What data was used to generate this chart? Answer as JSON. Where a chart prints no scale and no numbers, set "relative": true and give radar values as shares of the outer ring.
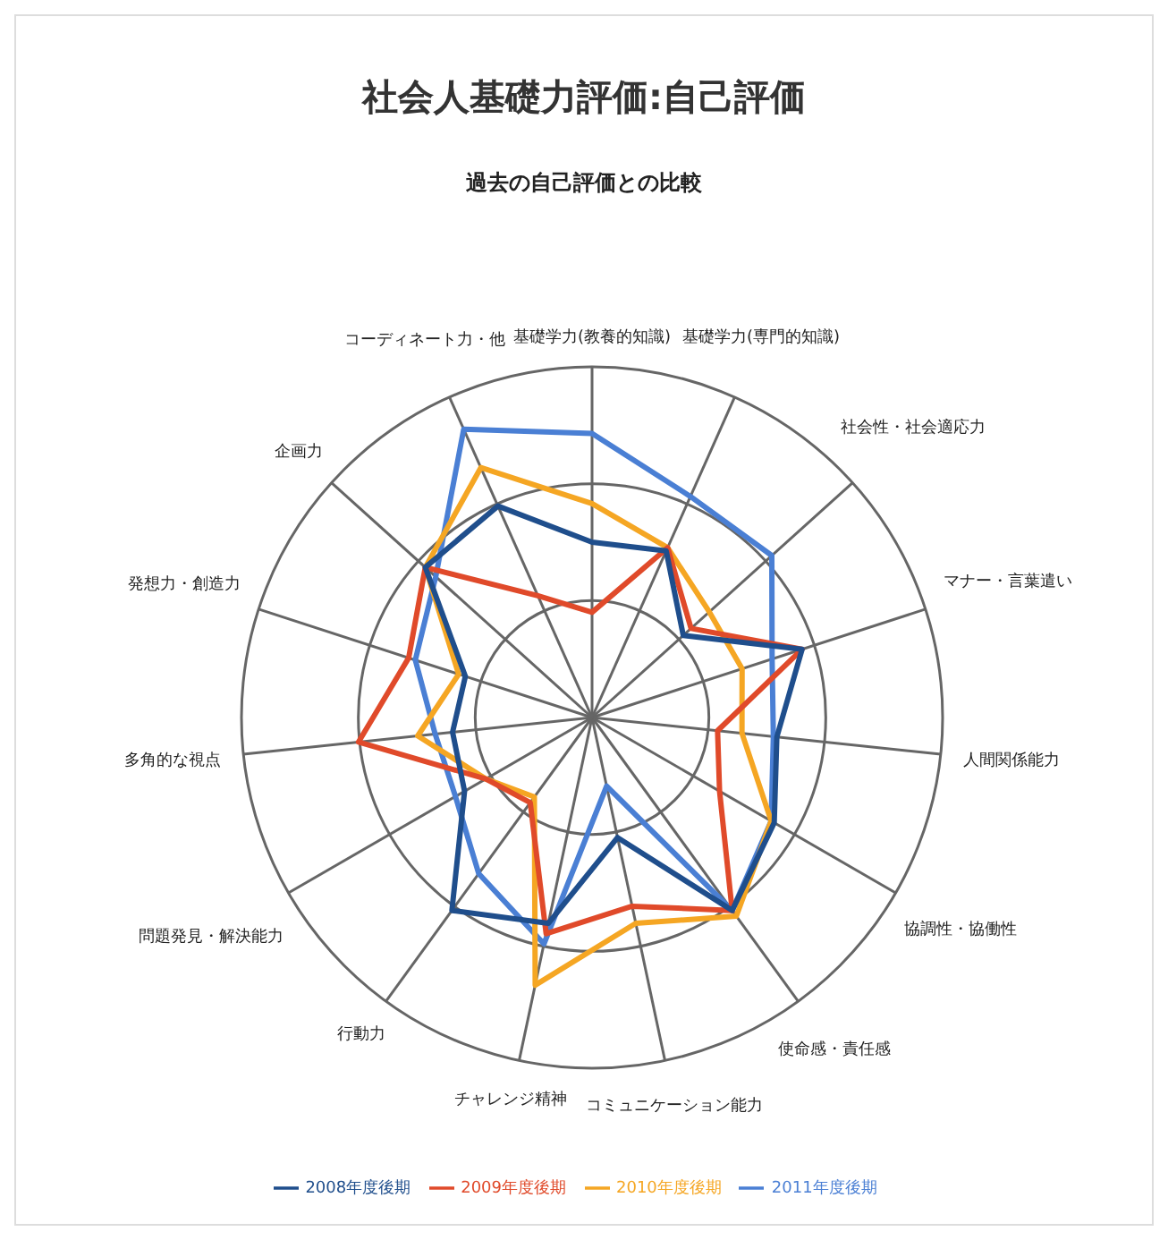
{
  "chart_data": {
    "type": "radar",
    "title": "社会人基礎力評価:自己評価",
    "subtitle": "過去の自己評価との比較",
    "relative": true,
    "legend": "bottom",
    "grid": true,
    "categories": [
      "基礎学力(教養的知識)",
      "基礎学力(専門的知識)",
      "社会性・社会適応力",
      "マナー・言葉遣い",
      "人間関係能力",
      "協調性・協働性",
      "使命感・責任感",
      "コミュニケーション能力",
      "チャレンジ精神",
      "行動力",
      "問題発見・解決能力",
      "多角的な視点",
      "発想力・創造力",
      "企画力",
      "コーディネート力・他"
    ],
    "series": [
      {
        "name": "2011年度後期",
        "color": "#4a7fd4",
        "values": [
          0.81,
          0.69,
          0.69,
          0.54,
          0.52,
          0.59,
          0.68,
          0.2,
          0.66,
          0.55,
          0.45,
          0.45,
          0.53,
          0.6,
          0.9
        ]
      },
      {
        "name": "2010年度後期",
        "color": "#f5a623",
        "values": [
          0.61,
          0.53,
          0.45,
          0.45,
          0.43,
          0.59,
          0.7,
          0.6,
          0.78,
          0.28,
          0.35,
          0.5,
          0.4,
          0.64,
          0.78
        ]
      },
      {
        "name": "2009年度後期",
        "color": "#e04a2a",
        "values": [
          0.3,
          0.53,
          0.38,
          0.63,
          0.36,
          0.42,
          0.68,
          0.55,
          0.63,
          0.3,
          0.35,
          0.67,
          0.55,
          0.64,
          0.38
        ]
      },
      {
        "name": "2008年度後期",
        "color": "#1f4e8c",
        "values": [
          0.5,
          0.52,
          0.35,
          0.63,
          0.53,
          0.6,
          0.68,
          0.35,
          0.6,
          0.68,
          0.42,
          0.4,
          0.38,
          0.64,
          0.66
        ]
      }
    ]
  }
}
